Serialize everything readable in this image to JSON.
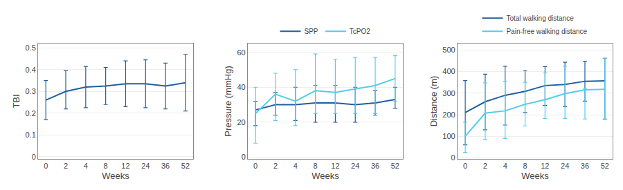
{
  "chart_data": [
    {
      "type": "line",
      "categories": [
        "0",
        "2",
        "4",
        "8",
        "12",
        "24",
        "36",
        "52"
      ],
      "xlabel": "Weeks",
      "ylabel": "TBI",
      "ylim": [
        -0.01,
        0.52
      ],
      "yticks": [
        0,
        0.1,
        0.2,
        0.3,
        0.4,
        0.5
      ],
      "grid": true,
      "series": [
        {
          "color": "#2060a0",
          "values": [
            0.26,
            0.3,
            0.32,
            0.325,
            0.335,
            0.335,
            0.325,
            0.34
          ],
          "upper": [
            0.35,
            0.395,
            0.415,
            0.41,
            0.44,
            0.445,
            0.43,
            0.47
          ],
          "lower": [
            0.17,
            0.22,
            0.225,
            0.24,
            0.23,
            0.225,
            0.22,
            0.21
          ]
        }
      ]
    },
    {
      "type": "line",
      "categories": [
        "0",
        "2",
        "4",
        "8",
        "12",
        "24",
        "36",
        "52"
      ],
      "xlabel": "Weeks",
      "ylabel": "Pressure (mmHg)",
      "ylim": [
        -1,
        65
      ],
      "yticks": [
        0,
        20,
        40,
        60
      ],
      "grid": true,
      "legend": "upper center",
      "series": [
        {
          "name": "SPP",
          "color": "#2060a0",
          "values": [
            27,
            30,
            30,
            31,
            31,
            30,
            31,
            33
          ],
          "upper": [
            32,
            37,
            40,
            41,
            41,
            40,
            38,
            40
          ],
          "lower": [
            18,
            24,
            21,
            20,
            20,
            20,
            24,
            28
          ]
        },
        {
          "name": "TcPO2",
          "color": "#55ccee",
          "values": [
            25,
            36,
            32,
            38,
            37,
            39,
            41,
            45
          ],
          "upper": [
            40,
            48,
            50,
            59,
            56,
            57,
            57,
            58
          ],
          "lower": [
            8,
            21,
            18,
            25,
            25,
            25,
            25,
            32
          ]
        }
      ]
    },
    {
      "type": "line",
      "categories": [
        "0",
        "2",
        "4",
        "8",
        "12",
        "24",
        "36",
        "52"
      ],
      "xlabel": "Weeks",
      "ylabel": "Distance (m)",
      "ylim": [
        -5,
        530
      ],
      "yticks": [
        0,
        100,
        200,
        300,
        400,
        500
      ],
      "grid": true,
      "legend": "upper center",
      "series": [
        {
          "name": "Total walking distance",
          "color": "#2060a0",
          "values": [
            210,
            260,
            290,
            308,
            335,
            340,
            355,
            357
          ],
          "upper": [
            358,
            388,
            425,
            405,
            423,
            443,
            448,
            462
          ],
          "lower": [
            60,
            130,
            152,
            210,
            243,
            237,
            263,
            180
          ]
        },
        {
          "name": "Pain-free walking distance",
          "color": "#55ccee",
          "values": [
            100,
            207,
            218,
            248,
            270,
            298,
            315,
            318
          ],
          "upper": [
            165,
            348,
            355,
            350,
            393,
            425,
            323,
            462
          ],
          "lower": [
            25,
            85,
            90,
            148,
            183,
            183,
            180,
            178
          ]
        }
      ]
    }
  ]
}
